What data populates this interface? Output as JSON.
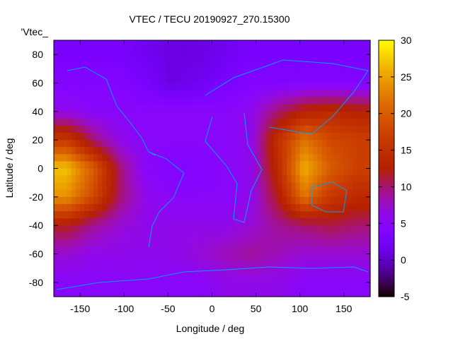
{
  "chart_data": {
    "type": "heatmap",
    "title": "VTEC / TECU 20190927_270.15300",
    "xlabel": "Longitude / deg",
    "ylabel": "Latitude / deg",
    "legend_label": "'Vtec_",
    "legend_placement": "top-left",
    "xlim": [
      -180,
      180
    ],
    "ylim": [
      -90,
      90
    ],
    "xticks": [
      "-150",
      "-100",
      "-50",
      "0",
      "50",
      "100",
      "150"
    ],
    "xtick_values": [
      -150,
      -100,
      -50,
      0,
      50,
      100,
      150
    ],
    "yticks": [
      "80",
      "60",
      "40",
      "20",
      "0",
      "-20",
      "-40",
      "-60",
      "-80"
    ],
    "ytick_values": [
      80,
      60,
      40,
      20,
      0,
      -20,
      -40,
      -60,
      -80
    ],
    "colorbar": {
      "range": [
        -5,
        30
      ],
      "ticks": [
        "30",
        "25",
        "20",
        "15",
        "10",
        "5",
        "0",
        "-5"
      ],
      "tick_values": [
        30,
        25,
        20,
        15,
        10,
        5,
        0,
        -5
      ]
    },
    "grid_lon": [
      -165,
      -135,
      -105,
      -75,
      -45,
      -15,
      15,
      45,
      75,
      105,
      135,
      165
    ],
    "grid_lat": [
      80,
      60,
      40,
      20,
      0,
      -20,
      -40,
      -60,
      -80
    ],
    "values": [
      [
        3,
        3,
        3,
        2,
        1,
        1,
        2,
        3,
        3,
        3,
        3,
        3
      ],
      [
        4,
        4,
        4,
        3,
        1,
        2,
        3,
        4,
        4,
        4,
        4,
        4
      ],
      [
        6,
        5,
        5,
        5,
        5,
        5,
        5,
        6,
        10,
        13,
        14,
        13
      ],
      [
        16,
        10,
        6,
        5,
        5,
        5,
        5,
        6,
        15,
        22,
        18,
        17
      ],
      [
        27,
        20,
        10,
        5,
        4,
        4,
        5,
        6,
        14,
        26,
        20,
        17
      ],
      [
        24,
        18,
        10,
        6,
        5,
        5,
        5,
        6,
        12,
        22,
        16,
        14
      ],
      [
        12,
        9,
        7,
        6,
        6,
        6,
        6,
        7,
        9,
        10,
        11,
        10
      ],
      [
        7,
        6,
        6,
        6,
        6,
        7,
        8,
        9,
        8,
        7,
        7,
        7
      ],
      [
        5,
        5,
        5,
        5,
        5,
        5,
        6,
        6,
        6,
        5,
        5,
        5
      ]
    ]
  }
}
